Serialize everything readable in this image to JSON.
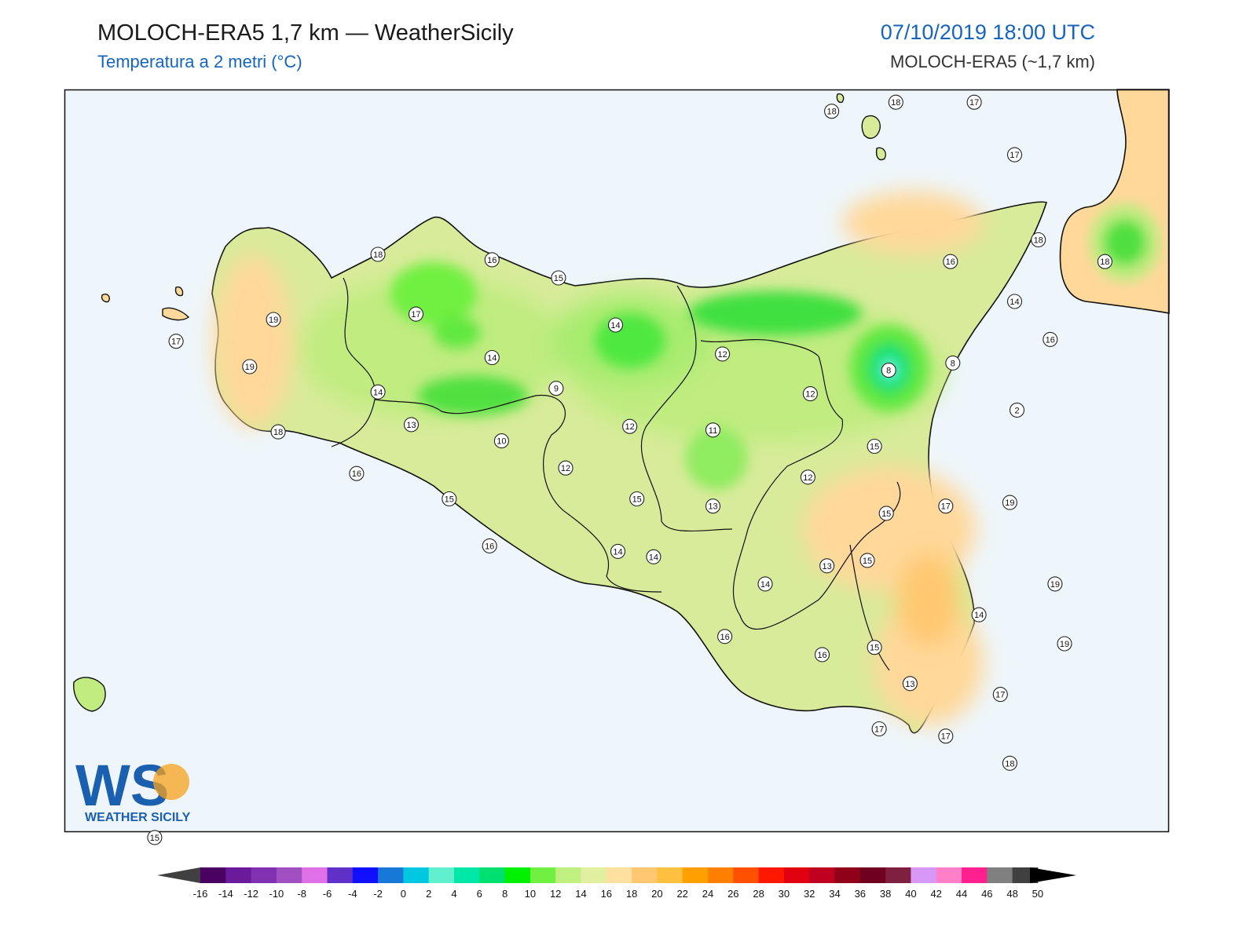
{
  "header": {
    "title": "MOLOCH-ERA5 1,7 km — WeatherSicily",
    "subtitle": "Temperatura a 2 metri (°C)",
    "datetime": "07/10/2019 18:00 UTC",
    "model": "MOLOCH-ERA5 (~1,7 km)"
  },
  "logo": {
    "letters": "WS",
    "text": "WEATHER SICILY"
  },
  "colors": {
    "sea": "#eef6fb",
    "accent": "#1565c0"
  },
  "colorbar": {
    "labels": [
      "-16",
      "-14",
      "-12",
      "-10",
      "-8",
      "-6",
      "-4",
      "-2",
      "0",
      "2",
      "4",
      "6",
      "8",
      "10",
      "12",
      "14",
      "16",
      "18",
      "20",
      "22",
      "24",
      "26",
      "28",
      "30",
      "32",
      "34",
      "36",
      "38",
      "40",
      "42",
      "44",
      "46",
      "48",
      "50"
    ],
    "colors": [
      "#4a0060",
      "#6a1a9a",
      "#8030b0",
      "#a050c0",
      "#e070e8",
      "#6030c8",
      "#1010ff",
      "#1878d8",
      "#00c8e0",
      "#60f0d0",
      "#00e8a8",
      "#00e070",
      "#00f000",
      "#70f040",
      "#c0f080",
      "#e0f0a0",
      "#ffe0a0",
      "#ffc870",
      "#ffc040",
      "#ffa000",
      "#ff8000",
      "#ff5000",
      "#ff1800",
      "#e00010",
      "#c00020",
      "#900018",
      "#700020",
      "#802040",
      "#d898f8",
      "#ff80c8",
      "#ff2090",
      "#808080",
      "#404040"
    ]
  },
  "stations": [
    {
      "t": "18",
      "lon": 12.87,
      "lat": 38.54
    },
    {
      "t": "16",
      "lon": 13.35,
      "lat": 38.51
    },
    {
      "t": "15",
      "lon": 13.63,
      "lat": 38.41
    },
    {
      "t": "17",
      "lon": 13.03,
      "lat": 38.21
    },
    {
      "t": "19",
      "lon": 12.43,
      "lat": 38.18
    },
    {
      "t": "17",
      "lon": 12.02,
      "lat": 38.06
    },
    {
      "t": "19",
      "lon": 12.33,
      "lat": 37.92
    },
    {
      "t": "14",
      "lon": 13.35,
      "lat": 37.97
    },
    {
      "t": "14",
      "lon": 13.87,
      "lat": 38.15
    },
    {
      "t": "14",
      "lon": 12.87,
      "lat": 37.78
    },
    {
      "t": "9",
      "lon": 13.62,
      "lat": 37.8
    },
    {
      "t": "13",
      "lon": 13.01,
      "lat": 37.6
    },
    {
      "t": "12",
      "lon": 13.93,
      "lat": 37.59
    },
    {
      "t": "10",
      "lon": 13.39,
      "lat": 37.51
    },
    {
      "t": "18",
      "lon": 12.45,
      "lat": 37.56
    },
    {
      "t": "12",
      "lon": 13.66,
      "lat": 37.36
    },
    {
      "t": "16",
      "lon": 12.78,
      "lat": 37.33
    },
    {
      "t": "15",
      "lon": 13.17,
      "lat": 37.19
    },
    {
      "t": "12",
      "lon": 14.32,
      "lat": 37.99
    },
    {
      "t": "11",
      "lon": 14.28,
      "lat": 37.57
    },
    {
      "t": "12",
      "lon": 14.69,
      "lat": 37.77
    },
    {
      "t": "8",
      "lon": 15.02,
      "lat": 37.9
    },
    {
      "t": "8",
      "lon": 15.29,
      "lat": 37.94
    },
    {
      "t": "2",
      "lon": 15.56,
      "lat": 37.68
    },
    {
      "t": "15",
      "lon": 13.96,
      "lat": 37.19
    },
    {
      "t": "13",
      "lon": 14.28,
      "lat": 37.15
    },
    {
      "t": "12",
      "lon": 14.68,
      "lat": 37.31
    },
    {
      "t": "15",
      "lon": 14.96,
      "lat": 37.48
    },
    {
      "t": "15",
      "lon": 15.01,
      "lat": 37.11
    },
    {
      "t": "17",
      "lon": 15.26,
      "lat": 37.15
    },
    {
      "t": "19",
      "lon": 15.53,
      "lat": 37.17
    },
    {
      "t": "16",
      "lon": 13.34,
      "lat": 36.93
    },
    {
      "t": "14",
      "lon": 14.03,
      "lat": 36.87
    },
    {
      "t": "14",
      "lon": 13.88,
      "lat": 36.9
    },
    {
      "t": "14",
      "lon": 14.5,
      "lat": 36.72
    },
    {
      "t": "13",
      "lon": 14.76,
      "lat": 36.82
    },
    {
      "t": "15",
      "lon": 14.93,
      "lat": 36.85
    },
    {
      "t": "14",
      "lon": 15.4,
      "lat": 36.55
    },
    {
      "t": "19",
      "lon": 15.72,
      "lat": 36.72
    },
    {
      "t": "16",
      "lon": 14.33,
      "lat": 36.43
    },
    {
      "t": "16",
      "lon": 14.74,
      "lat": 36.33
    },
    {
      "t": "15",
      "lon": 14.96,
      "lat": 36.37
    },
    {
      "t": "19",
      "lon": 15.76,
      "lat": 36.39
    },
    {
      "t": "17",
      "lon": 15.49,
      "lat": 36.11
    },
    {
      "t": "13",
      "lon": 15.11,
      "lat": 36.17
    },
    {
      "t": "17",
      "lon": 14.98,
      "lat": 35.92
    },
    {
      "t": "17",
      "lon": 15.26,
      "lat": 35.88
    },
    {
      "t": "18",
      "lon": 15.53,
      "lat": 35.73
    },
    {
      "t": "16",
      "lon": 15.28,
      "lat": 38.5
    },
    {
      "t": "14",
      "lon": 15.55,
      "lat": 38.28
    },
    {
      "t": "18",
      "lon": 15.65,
      "lat": 38.62
    },
    {
      "t": "18",
      "lon": 15.93,
      "lat": 38.5
    },
    {
      "t": "16",
      "lon": 15.7,
      "lat": 38.07
    },
    {
      "t": "18",
      "lon": 14.78,
      "lat": 39.33
    },
    {
      "t": "18",
      "lon": 15.05,
      "lat": 39.38
    },
    {
      "t": "17",
      "lon": 15.38,
      "lat": 39.38
    },
    {
      "t": "17",
      "lon": 15.55,
      "lat": 39.09
    },
    {
      "t": "15",
      "lon": 11.93,
      "lat": 35.32
    }
  ]
}
